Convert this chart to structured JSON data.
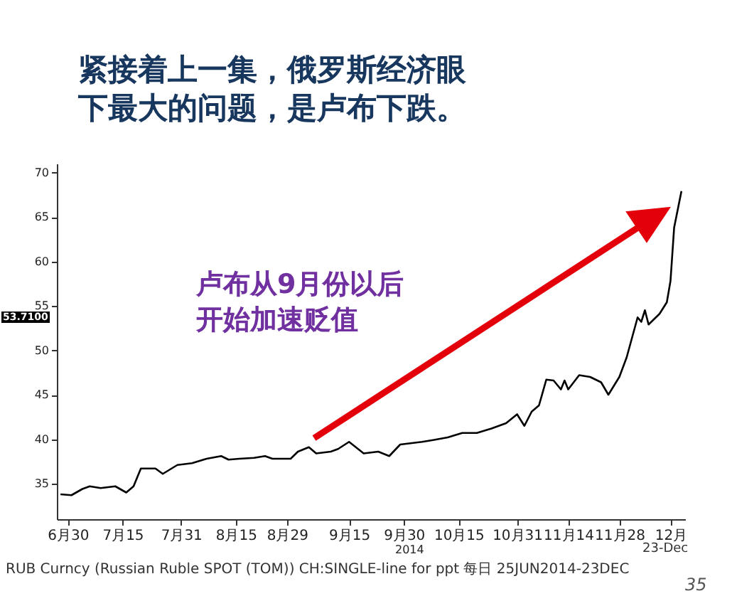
{
  "chart_data": {
    "type": "line",
    "title": "紧接着上一集，俄罗斯经济眼下最大的问题，是卢布下跌。",
    "annotations": [
      "卢布从9月份以后开始加速贬值",
      "RUB Curncy (Russian Ruble SPOT (TOM)) CH:SINGLE-line for ppt 每日 25JUN2014-23DEC",
      "23-Dec",
      "35",
      "53.7100",
      "2014"
    ],
    "x": [
      "2014-06-28",
      "2014-07-01",
      "2014-07-04",
      "2014-07-06",
      "2014-07-09",
      "2014-07-13",
      "2014-07-16",
      "2014-07-18",
      "2014-07-20",
      "2014-07-24",
      "2014-07-26",
      "2014-07-30",
      "2014-08-03",
      "2014-08-07",
      "2014-08-11",
      "2014-08-13",
      "2014-08-16",
      "2014-08-20",
      "2014-08-23",
      "2014-08-25",
      "2014-08-30",
      "2014-09-01",
      "2014-09-04",
      "2014-09-06",
      "2014-09-10",
      "2014-09-12",
      "2014-09-15",
      "2014-09-19",
      "2014-09-23",
      "2014-09-26",
      "2014-09-29",
      "2014-10-05",
      "2014-10-08",
      "2014-10-12",
      "2014-10-16",
      "2014-10-20",
      "2014-10-24",
      "2014-10-28",
      "2014-10-31",
      "2014-11-02",
      "2014-11-04",
      "2014-11-06",
      "2014-11-08",
      "2014-11-10",
      "2014-11-12",
      "2014-11-13",
      "2014-11-14",
      "2014-11-17",
      "2014-11-20",
      "2014-11-23",
      "2014-11-25",
      "2014-11-28",
      "2014-11-30",
      "2014-12-03",
      "2014-12-04",
      "2014-12-05",
      "2014-12-06",
      "2014-12-09",
      "2014-12-11",
      "2014-12-12",
      "2014-12-13",
      "2014-12-15"
    ],
    "values": [
      33.8,
      33.7,
      34.4,
      34.7,
      34.5,
      34.7,
      34.0,
      34.7,
      36.7,
      36.7,
      36.1,
      37.1,
      37.3,
      37.8,
      38.1,
      37.7,
      37.8,
      37.9,
      38.1,
      37.8,
      37.8,
      38.6,
      39.1,
      38.4,
      38.6,
      38.9,
      39.7,
      38.4,
      38.6,
      38.1,
      39.4,
      39.7,
      39.9,
      40.2,
      40.7,
      40.7,
      41.2,
      41.8,
      42.8,
      41.5,
      43.1,
      43.8,
      46.7,
      46.6,
      45.6,
      46.6,
      45.6,
      47.2,
      47.0,
      46.4,
      45.0,
      47.0,
      49.2,
      53.7,
      53.2,
      54.5,
      52.9,
      54.1,
      55.4,
      57.8,
      63.8,
      67.9
    ],
    "color": "#000000",
    "xlim": [
      "2014-06-27",
      "2014-12-16"
    ],
    "xticks": [
      {
        "value": "2014-06-30",
        "label": "6月30"
      },
      {
        "value": "2014-07-15",
        "label": "7月15"
      },
      {
        "value": "2014-07-31",
        "label": "7月31"
      },
      {
        "value": "2014-08-15",
        "label": "8月15"
      },
      {
        "value": "2014-08-29",
        "label": "8月29"
      },
      {
        "value": "2014-09-15",
        "label": "9月15"
      },
      {
        "value": "2014-09-30",
        "label": "9月30"
      },
      {
        "value": "2014-10-15",
        "label": "10月15"
      },
      {
        "value": "2014-10-31",
        "label": "10月31"
      },
      {
        "value": "2014-11-14",
        "label": "11月14"
      },
      {
        "value": "2014-11-28",
        "label": "11月28"
      },
      {
        "value": "2014-12-12",
        "label": "12月"
      }
    ],
    "ylim": [
      31,
      71
    ],
    "yticks": [
      35,
      40,
      45,
      50,
      55,
      60,
      65,
      70
    ]
  }
}
